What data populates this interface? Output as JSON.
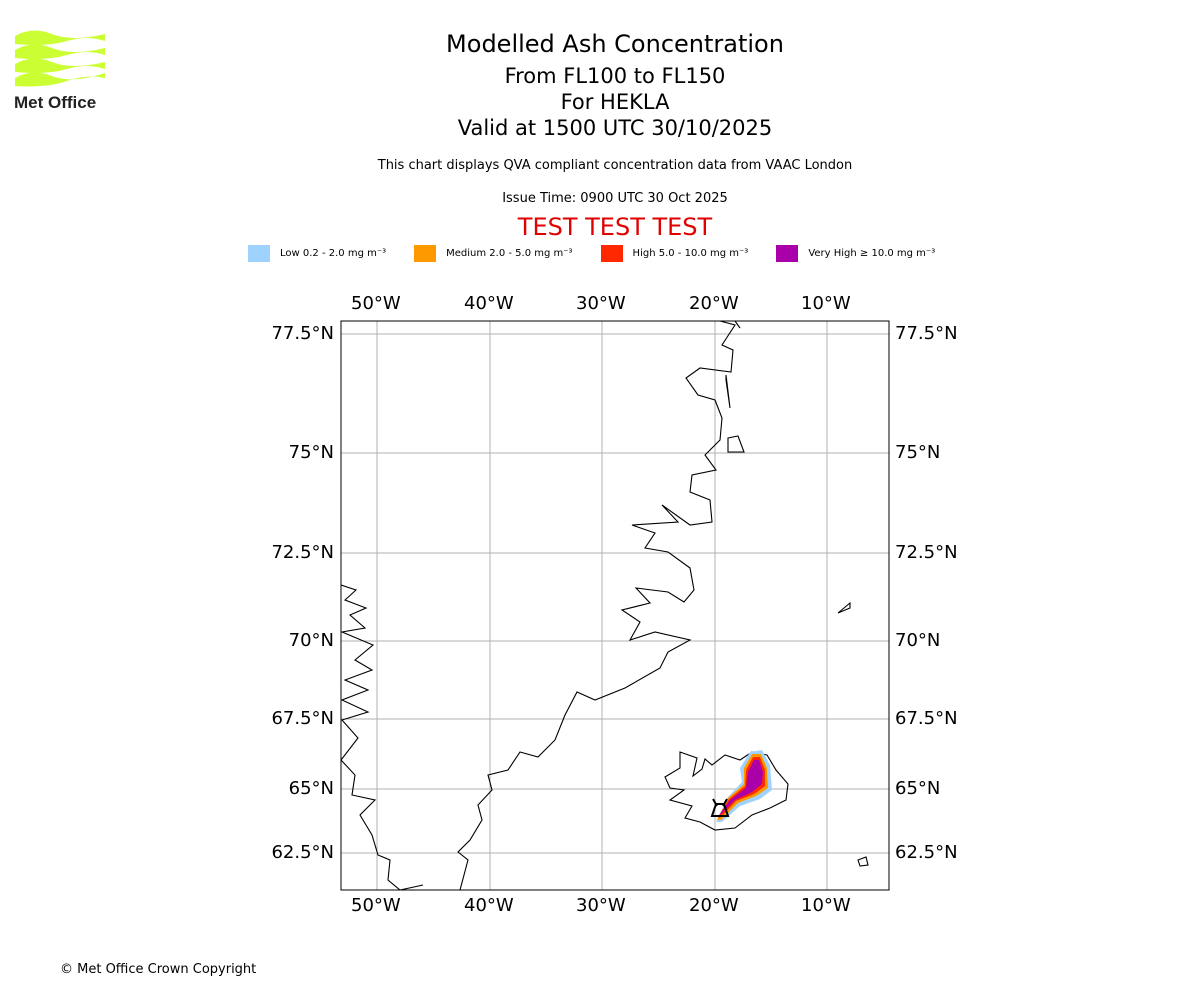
{
  "logo": {
    "text": "Met Office",
    "color": "#ccff33"
  },
  "header": {
    "title": "Modelled Ash Concentration",
    "levels": "From FL100 to FL150",
    "volcano": "For HEKLA",
    "valid": "Valid at 1500 UTC 30/10/2025",
    "description": "This chart displays QVA compliant concentration data from VAAC London",
    "issue_time": "Issue Time: 0900 UTC 30 Oct 2025",
    "test_banner": "TEST TEST TEST"
  },
  "legend": [
    {
      "label": "Low 0.2 - 2.0 mg m⁻³",
      "color": "#a0d2ff"
    },
    {
      "label": "Medium 2.0 - 5.0 mg m⁻³",
      "color": "#ff9900"
    },
    {
      "label": "High 5.0 - 10.0 mg m⁻³",
      "color": "#ff2800"
    },
    {
      "label": "Very High ≥ 10.0 mg m⁻³",
      "color": "#aa00aa"
    }
  ],
  "map": {
    "lon_labels": [
      "50°W",
      "40°W",
      "30°W",
      "20°W",
      "10°W"
    ],
    "lat_labels": [
      "77.5°N",
      "75°N",
      "72.5°N",
      "70°N",
      "67.5°N",
      "65°N",
      "62.5°N"
    ],
    "volcano_marker": "volcano-icon"
  },
  "footer": {
    "copyright": "© Met Office Crown Copyright"
  }
}
